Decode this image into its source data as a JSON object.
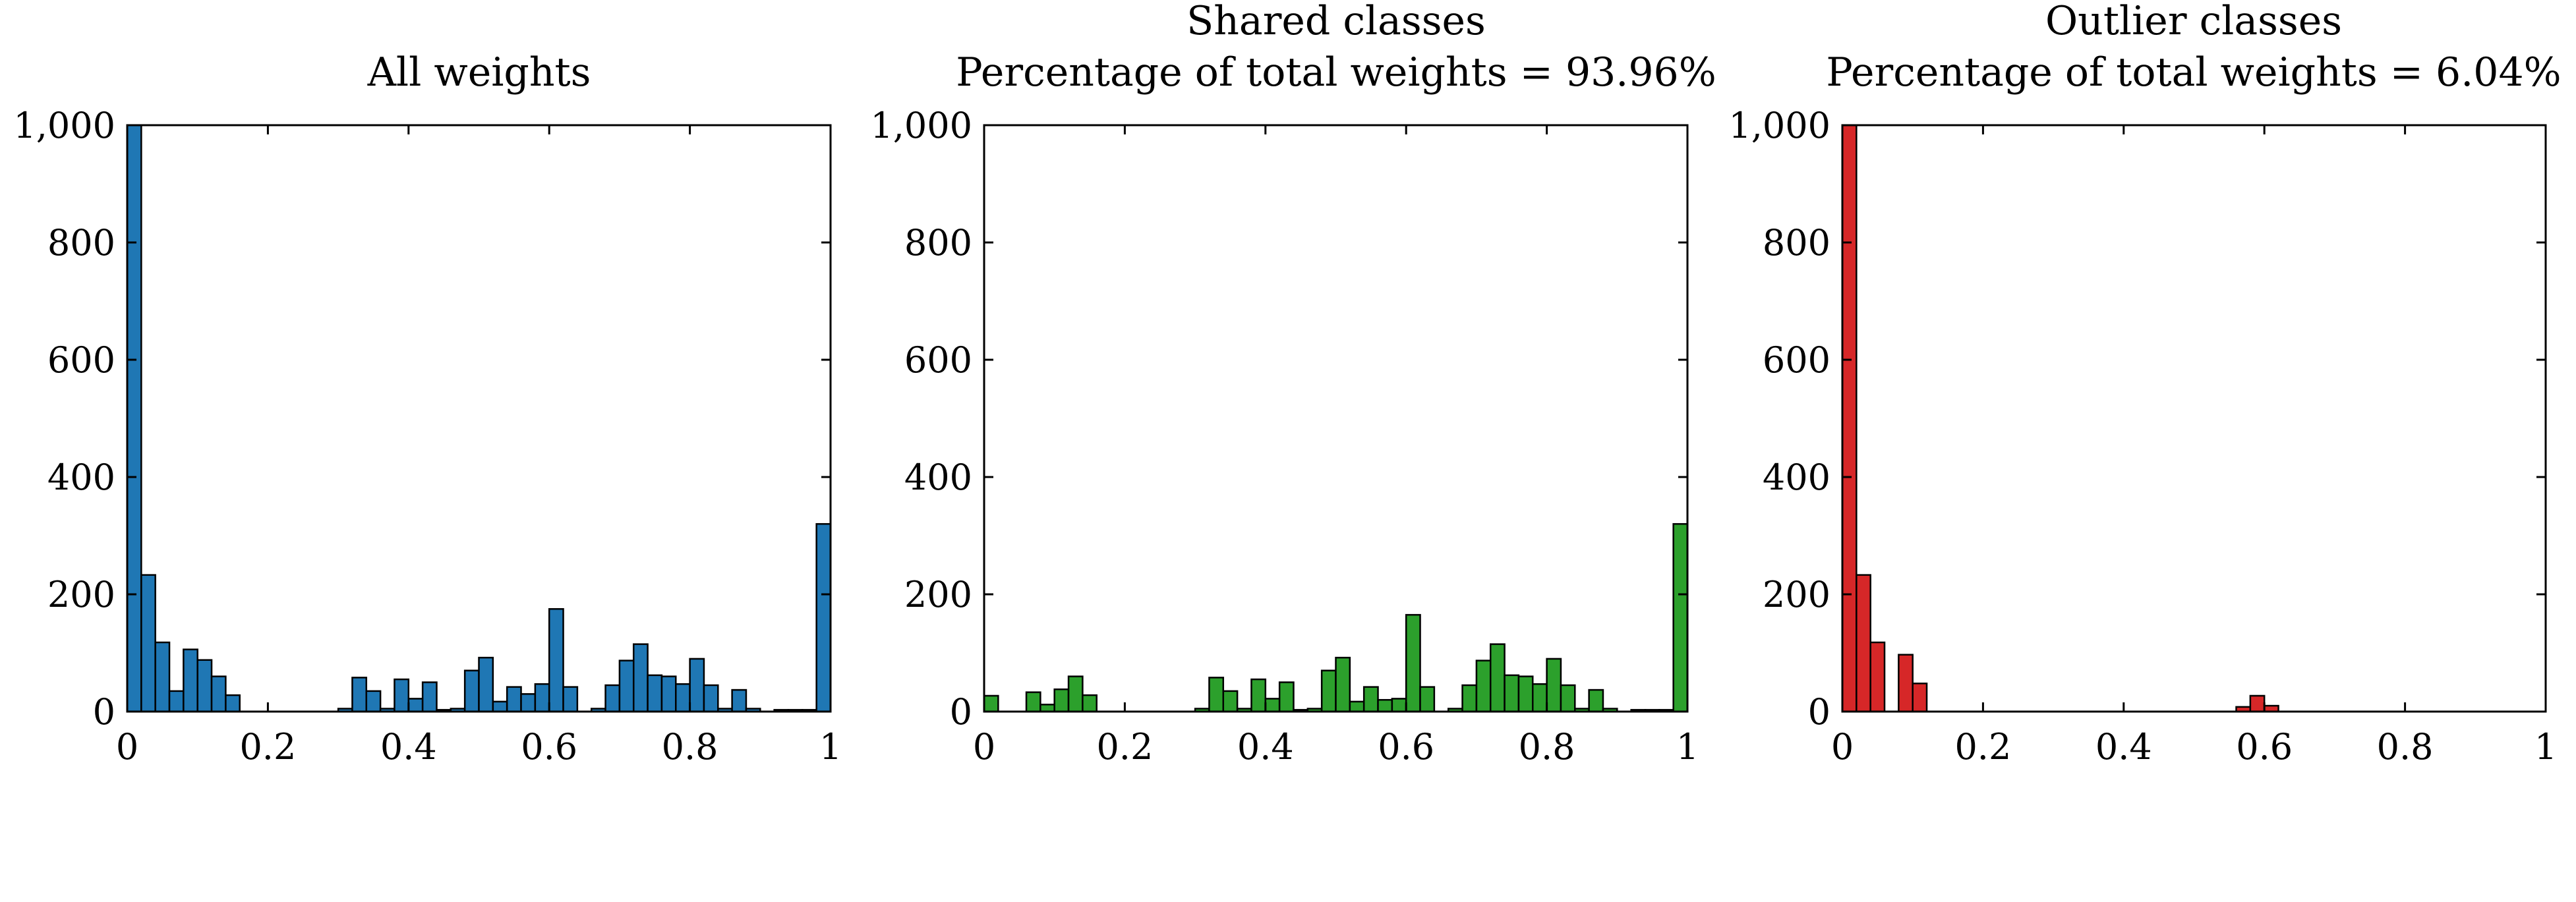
{
  "chart_data": [
    {
      "type": "bar",
      "title": "All weights",
      "subtitle": "",
      "color": "#1f77b4",
      "xlim": [
        0,
        1
      ],
      "ylim": [
        0,
        1000
      ],
      "xticks": [
        "0",
        "0.2",
        "0.4",
        "0.6",
        "0.8",
        "1"
      ],
      "yticks": [
        "0",
        "200",
        "400",
        "600",
        "800",
        "1,000"
      ],
      "bin_width": 0.02,
      "values": [
        1000,
        233,
        118,
        35,
        106,
        88,
        60,
        28,
        0,
        0,
        0,
        0,
        0,
        0,
        0,
        5,
        58,
        35,
        5,
        55,
        22,
        50,
        3,
        5,
        70,
        92,
        17,
        42,
        30,
        47,
        175,
        42,
        0,
        5,
        45,
        87,
        115,
        62,
        60,
        47,
        90,
        45,
        5,
        37,
        5,
        0,
        3,
        3,
        3,
        320
      ]
    },
    {
      "type": "bar",
      "title": "Shared classes",
      "subtitle": "Percentage of total weights = 93.96%",
      "color": "#2ca02c",
      "xlim": [
        0,
        1
      ],
      "ylim": [
        0,
        1000
      ],
      "xticks": [
        "0",
        "0.2",
        "0.4",
        "0.6",
        "0.8",
        "1"
      ],
      "yticks": [
        "0",
        "200",
        "400",
        "600",
        "800",
        "1,000"
      ],
      "bin_width": 0.02,
      "values": [
        27,
        0,
        0,
        33,
        12,
        38,
        60,
        28,
        0,
        0,
        0,
        0,
        0,
        0,
        0,
        5,
        58,
        35,
        5,
        55,
        22,
        50,
        3,
        5,
        70,
        92,
        17,
        42,
        20,
        22,
        165,
        42,
        0,
        5,
        45,
        87,
        115,
        62,
        60,
        47,
        90,
        45,
        5,
        37,
        5,
        0,
        3,
        3,
        3,
        320
      ]
    },
    {
      "type": "bar",
      "title": "Outlier classes",
      "subtitle": "Percentage of total weights = 6.04%",
      "color": "#d62728",
      "xlim": [
        0,
        1
      ],
      "ylim": [
        0,
        1000
      ],
      "xticks": [
        "0",
        "0.2",
        "0.4",
        "0.6",
        "0.8",
        "1"
      ],
      "yticks": [
        "0",
        "200",
        "400",
        "600",
        "800",
        "1,000"
      ],
      "bin_width": 0.02,
      "values": [
        1000,
        233,
        118,
        0,
        97,
        48,
        0,
        0,
        0,
        0,
        0,
        0,
        0,
        0,
        0,
        0,
        0,
        0,
        0,
        0,
        0,
        0,
        0,
        0,
        0,
        0,
        0,
        0,
        8,
        27,
        10,
        0,
        0,
        0,
        0,
        0,
        0,
        0,
        0,
        0,
        0,
        0,
        0,
        0,
        0,
        0,
        0,
        0,
        0,
        0
      ]
    }
  ]
}
